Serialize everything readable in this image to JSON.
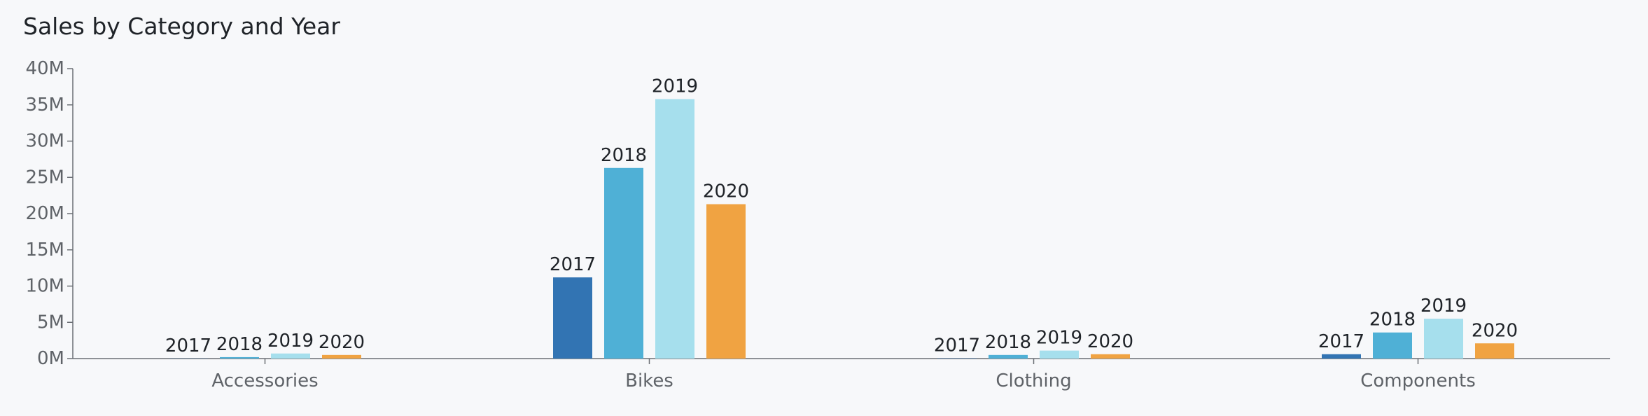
{
  "chart_data": {
    "type": "bar",
    "title": "Sales by Category and Year",
    "categories": [
      "Accessories",
      "Bikes",
      "Clothing",
      "Components"
    ],
    "series": [
      {
        "name": "2017",
        "color": "#3274b3",
        "values": [
          0.02,
          11.2,
          0.04,
          0.6
        ]
      },
      {
        "name": "2018",
        "color": "#4fb0d6",
        "values": [
          0.2,
          26.3,
          0.5,
          3.6
        ]
      },
      {
        "name": "2019",
        "color": "#a6dfed",
        "values": [
          0.7,
          35.8,
          1.1,
          5.5
        ]
      },
      {
        "name": "2020",
        "color": "#f0a342",
        "values": [
          0.5,
          21.3,
          0.6,
          2.1
        ]
      }
    ],
    "ylim": [
      0,
      40
    ],
    "yticks": [
      {
        "value": 0,
        "label": "0M"
      },
      {
        "value": 5,
        "label": "5M"
      },
      {
        "value": 10,
        "label": "10M"
      },
      {
        "value": 15,
        "label": "15M"
      },
      {
        "value": 20,
        "label": "20M"
      },
      {
        "value": 25,
        "label": "25M"
      },
      {
        "value": 30,
        "label": "30M"
      },
      {
        "value": 35,
        "label": "35M"
      },
      {
        "value": 40,
        "label": "40M"
      }
    ],
    "xlabel": "",
    "ylabel": "",
    "grid": false,
    "legend": "none"
  }
}
